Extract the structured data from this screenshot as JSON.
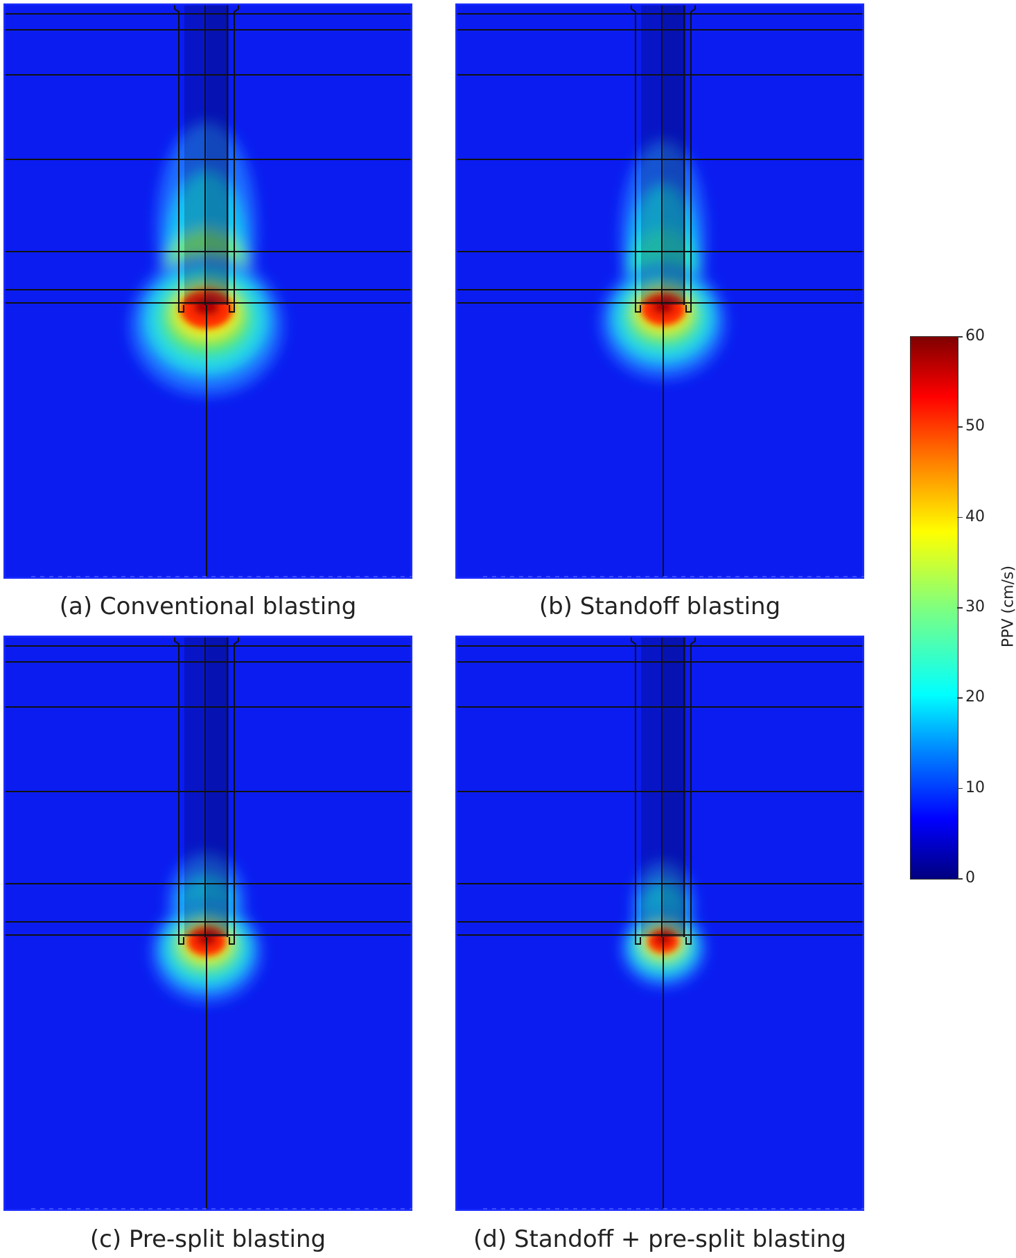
{
  "chart_data": {
    "type": "heatmap",
    "colorbar": {
      "label": "PPV (cm/s)",
      "ticks": [
        "60",
        "50",
        "40",
        "30",
        "20",
        "10",
        "0"
      ],
      "range": [
        0,
        60
      ],
      "colormap": "jet",
      "colors": [
        "#00007f",
        "#0000ff",
        "#007fff",
        "#00ffff",
        "#7fff7f",
        "#ffff00",
        "#ff7f00",
        "#ff0000",
        "#7f0000"
      ]
    },
    "panels": [
      {
        "id": "a",
        "caption": "(a) Conventional blasting",
        "max_ppv": 60,
        "standoff": false,
        "presplit": false
      },
      {
        "id": "b",
        "caption": "(b) Standoff blasting",
        "max_ppv": 60,
        "standoff": true,
        "presplit": false
      },
      {
        "id": "c",
        "caption": "(c) Pre-split blasting",
        "max_ppv": 60,
        "standoff": false,
        "presplit": true
      },
      {
        "id": "d",
        "caption": "(d) Standoff + pre-split blasting",
        "max_ppv": 60,
        "standoff": true,
        "presplit": true
      }
    ]
  },
  "colors": {
    "background_field": "#0a1cf0",
    "outline": "#111111"
  }
}
